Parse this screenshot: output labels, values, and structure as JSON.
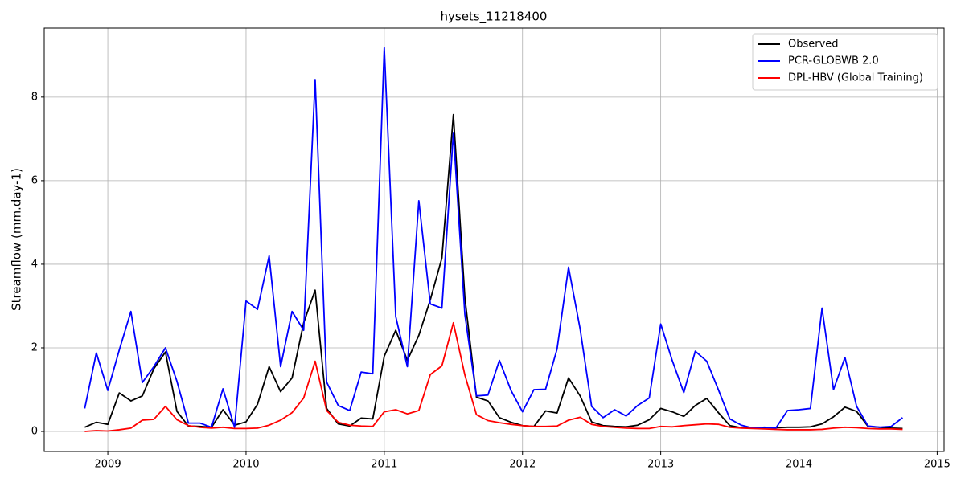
{
  "chart_data": {
    "type": "line",
    "title": "hysets_11218400",
    "y_label": "Streamflow (mm.day-1)",
    "x": [
      2008.833,
      2008.917,
      2009.0,
      2009.083,
      2009.167,
      2009.25,
      2009.333,
      2009.417,
      2009.5,
      2009.583,
      2009.667,
      2009.75,
      2009.833,
      2009.917,
      2010.0,
      2010.083,
      2010.167,
      2010.25,
      2010.333,
      2010.417,
      2010.5,
      2010.583,
      2010.667,
      2010.75,
      2010.833,
      2010.917,
      2011.0,
      2011.083,
      2011.167,
      2011.25,
      2011.333,
      2011.417,
      2011.5,
      2011.583,
      2011.667,
      2011.75,
      2011.833,
      2011.917,
      2012.0,
      2012.083,
      2012.167,
      2012.25,
      2012.333,
      2012.417,
      2012.5,
      2012.583,
      2012.667,
      2012.75,
      2012.833,
      2012.917,
      2013.0,
      2013.083,
      2013.167,
      2013.25,
      2013.333,
      2013.417,
      2013.5,
      2013.583,
      2013.667,
      2013.75,
      2013.833,
      2013.917,
      2014.0,
      2014.083,
      2014.167,
      2014.25,
      2014.333,
      2014.417,
      2014.5,
      2014.583,
      2014.667,
      2014.75
    ],
    "series": [
      {
        "name": "Observed",
        "color": "#000000",
        "values": [
          0.1,
          0.22,
          0.17,
          0.92,
          0.73,
          0.85,
          1.5,
          1.9,
          0.48,
          0.13,
          0.12,
          0.1,
          0.52,
          0.15,
          0.23,
          0.65,
          1.55,
          0.95,
          1.28,
          2.6,
          3.38,
          0.55,
          0.18,
          0.13,
          0.32,
          0.3,
          1.8,
          2.42,
          1.7,
          2.3,
          3.15,
          4.15,
          7.58,
          3.2,
          0.82,
          0.73,
          0.33,
          0.22,
          0.14,
          0.12,
          0.49,
          0.44,
          1.28,
          0.85,
          0.23,
          0.14,
          0.12,
          0.11,
          0.15,
          0.28,
          0.55,
          0.47,
          0.36,
          0.62,
          0.79,
          0.45,
          0.14,
          0.09,
          0.08,
          0.09,
          0.09,
          0.1,
          0.1,
          0.11,
          0.18,
          0.35,
          0.58,
          0.48,
          0.12,
          0.1,
          0.08,
          0.07
        ]
      },
      {
        "name": "PCR-GLOBWB 2.0",
        "color": "#0000ff",
        "values": [
          0.55,
          1.88,
          0.98,
          1.95,
          2.87,
          1.17,
          1.55,
          2.0,
          1.2,
          0.2,
          0.2,
          0.1,
          1.02,
          0.1,
          3.12,
          2.92,
          4.2,
          1.55,
          2.87,
          2.42,
          8.42,
          1.18,
          0.62,
          0.5,
          1.42,
          1.38,
          9.18,
          2.75,
          1.55,
          5.52,
          3.05,
          2.95,
          7.15,
          2.8,
          0.85,
          0.87,
          1.7,
          0.98,
          0.47,
          1.0,
          1.01,
          1.97,
          3.93,
          2.45,
          0.6,
          0.33,
          0.52,
          0.37,
          0.62,
          0.8,
          2.57,
          1.7,
          0.93,
          1.92,
          1.68,
          1.0,
          0.3,
          0.15,
          0.08,
          0.1,
          0.08,
          0.5,
          0.52,
          0.55,
          2.95,
          1.0,
          1.77,
          0.6,
          0.13,
          0.1,
          0.12,
          0.33
        ]
      },
      {
        "name": "DPL-HBV (Global Training)",
        "color": "#ff0000",
        "values": [
          0.0,
          0.02,
          0.01,
          0.04,
          0.08,
          0.27,
          0.29,
          0.6,
          0.28,
          0.14,
          0.1,
          0.08,
          0.1,
          0.07,
          0.07,
          0.08,
          0.15,
          0.27,
          0.45,
          0.8,
          1.68,
          0.5,
          0.22,
          0.15,
          0.13,
          0.12,
          0.47,
          0.52,
          0.42,
          0.5,
          1.36,
          1.57,
          2.6,
          1.35,
          0.4,
          0.26,
          0.21,
          0.17,
          0.14,
          0.12,
          0.12,
          0.13,
          0.27,
          0.34,
          0.17,
          0.12,
          0.1,
          0.08,
          0.07,
          0.07,
          0.12,
          0.11,
          0.14,
          0.16,
          0.18,
          0.17,
          0.1,
          0.08,
          0.07,
          0.06,
          0.05,
          0.04,
          0.04,
          0.04,
          0.05,
          0.08,
          0.1,
          0.09,
          0.07,
          0.06,
          0.06,
          0.05
        ]
      }
    ],
    "xlim": [
      2008.54,
      2015.05
    ],
    "xticks": [
      2009,
      2010,
      2011,
      2012,
      2013,
      2014,
      2015
    ],
    "ylim": [
      -0.48,
      9.65
    ],
    "yticks": [
      0,
      2,
      4,
      6,
      8
    ],
    "grid": true,
    "legend": "upper right"
  }
}
